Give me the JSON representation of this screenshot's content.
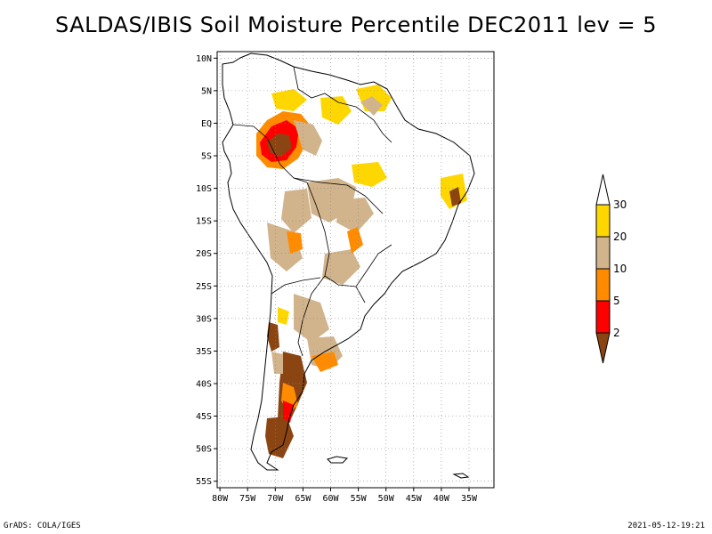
{
  "title": "SALDAS/IBIS Soil Moisture Percentile DEC2011 lev = 5",
  "footer": {
    "left": "GrADS: COLA/IGES",
    "right": "2021-05-12-19:21"
  },
  "map": {
    "lon_range": [
      -80.5,
      -30.5
    ],
    "lat_range": [
      -56,
      11
    ],
    "lat_ticks": [
      {
        "v": 10,
        "label": "10N"
      },
      {
        "v": 5,
        "label": "5N"
      },
      {
        "v": 0,
        "label": "EQ"
      },
      {
        "v": -5,
        "label": "5S"
      },
      {
        "v": -10,
        "label": "10S"
      },
      {
        "v": -15,
        "label": "15S"
      },
      {
        "v": -20,
        "label": "20S"
      },
      {
        "v": -25,
        "label": "25S"
      },
      {
        "v": -30,
        "label": "30S"
      },
      {
        "v": -35,
        "label": "35S"
      },
      {
        "v": -40,
        "label": "40S"
      },
      {
        "v": -45,
        "label": "45S"
      },
      {
        "v": -50,
        "label": "50S"
      },
      {
        "v": -55,
        "label": "55S"
      }
    ],
    "lon_ticks": [
      {
        "v": -80,
        "label": "80W"
      },
      {
        "v": -75,
        "label": "75W"
      },
      {
        "v": -70,
        "label": "70W"
      },
      {
        "v": -65,
        "label": "65W"
      },
      {
        "v": -60,
        "label": "60W"
      },
      {
        "v": -55,
        "label": "55W"
      },
      {
        "v": -50,
        "label": "50W"
      },
      {
        "v": -45,
        "label": "45W"
      },
      {
        "v": -40,
        "label": "40W"
      },
      {
        "v": -35,
        "label": "35W"
      }
    ]
  },
  "colorbar": {
    "labels": [
      "2",
      "5",
      "10",
      "20",
      "30"
    ],
    "colors": [
      "#8b4513",
      "#ff0000",
      "#ff8c00",
      "#d2b48c",
      "#ffd700",
      "#ffffff"
    ]
  }
}
